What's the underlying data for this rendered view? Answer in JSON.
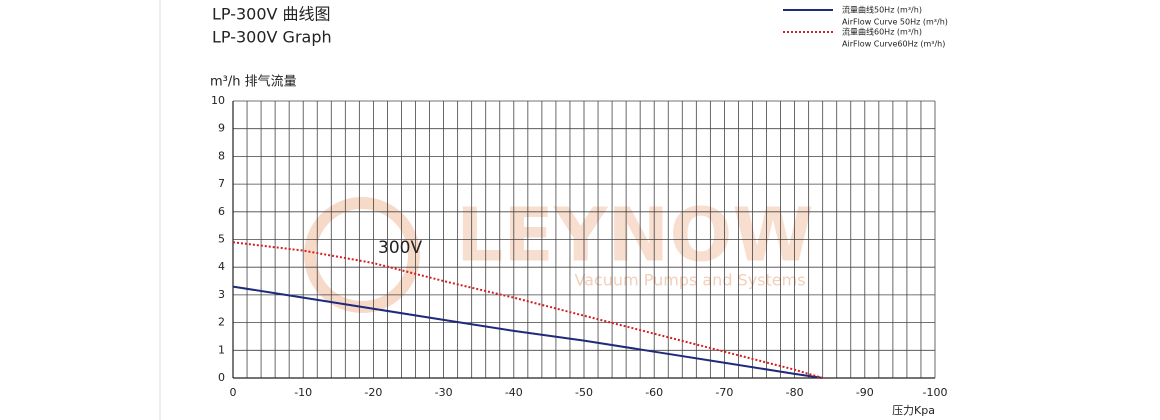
{
  "chart_data": {
    "type": "line",
    "title": "LP-300V   曲线图",
    "subtitle": "LP-300V   Graph",
    "y_label": "m³/h 排气流量",
    "x_label": "压力Kpa",
    "annotation": "300V",
    "watermark": "LEYNOW",
    "watermark_sub": "Vacuum Pumps and Systems",
    "x": [
      0,
      -10,
      -20,
      -30,
      -40,
      -50,
      -60,
      -70,
      -80,
      -84
    ],
    "series": [
      {
        "name": "流量曲线50Hz (m³/h)",
        "name_en": "AirFlow Curve 50Hz (m³/h)",
        "color": "#1f2a7c",
        "style": "solid",
        "values": [
          3.3,
          2.9,
          2.5,
          2.1,
          1.7,
          1.35,
          0.95,
          0.55,
          0.15,
          0
        ]
      },
      {
        "name": "流量曲线60Hz (m³/h)",
        "name_en": "AirFlow Curve60Hz (m³/h)",
        "color": "#d42020",
        "style": "dotted",
        "values": [
          4.9,
          4.6,
          4.15,
          3.5,
          2.9,
          2.25,
          1.6,
          0.95,
          0.3,
          0
        ]
      }
    ],
    "xlim": [
      0,
      -100
    ],
    "xticks": [
      0,
      -10,
      -20,
      -30,
      -40,
      -50,
      -60,
      -70,
      -80,
      -90,
      -100
    ],
    "ylim": [
      0,
      10
    ],
    "yticks": [
      0,
      1,
      2,
      3,
      4,
      5,
      6,
      7,
      8,
      9,
      10
    ],
    "grid": true,
    "x_minor_divisions": 5,
    "legend": "top-right"
  }
}
